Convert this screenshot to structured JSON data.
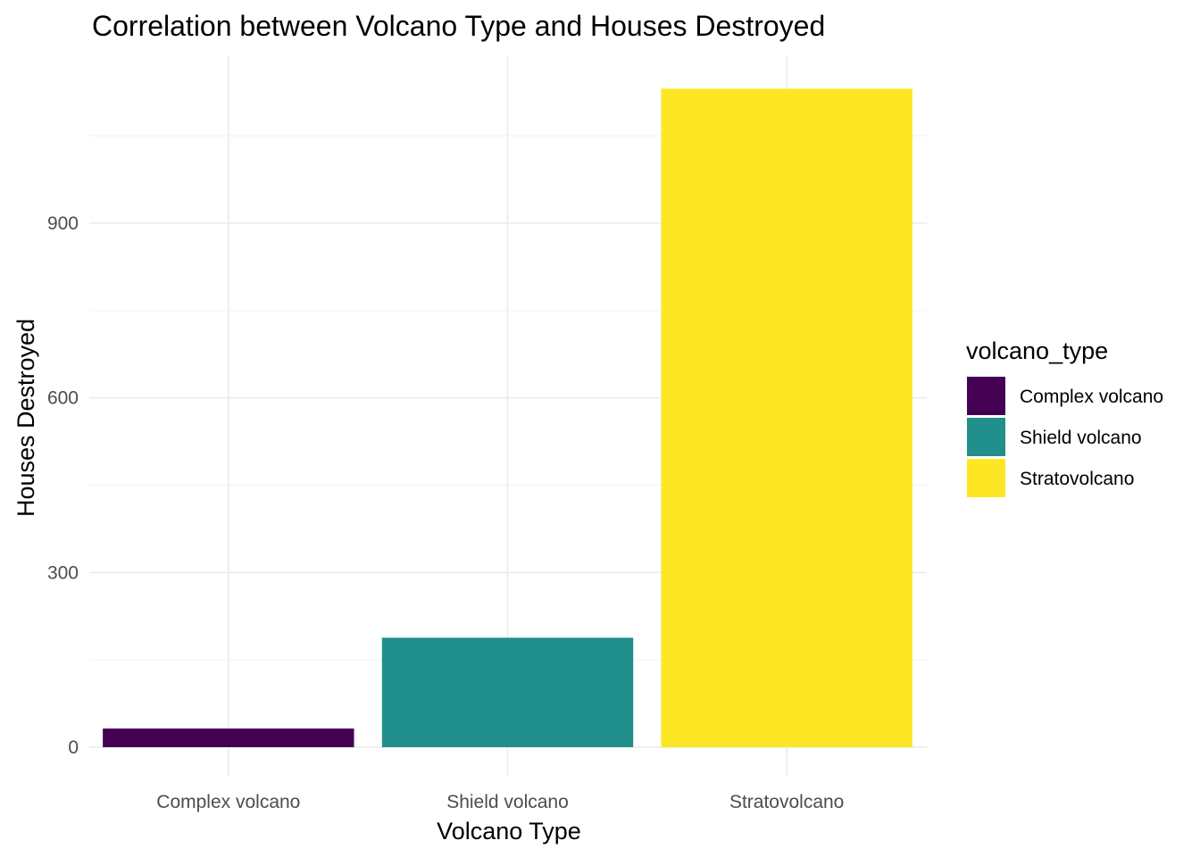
{
  "chart_data": {
    "type": "bar",
    "title": "Correlation between Volcano Type and Houses Destroyed",
    "xlabel": "Volcano Type",
    "ylabel": "Houses Destroyed",
    "categories": [
      "Complex volcano",
      "Shield volcano",
      "Stratovolcano"
    ],
    "values": [
      32,
      188,
      1131
    ],
    "colors": [
      "#440154",
      "#21908C",
      "#FDE725"
    ],
    "ylim": [
      0,
      1200
    ],
    "yticks": [
      0,
      300,
      600,
      900
    ],
    "ytick_labels": [
      "0",
      "300",
      "600",
      "900"
    ],
    "grid": true,
    "legend": {
      "title": "volcano_type",
      "position": "right",
      "entries": [
        "Complex volcano",
        "Shield volcano",
        "Stratovolcano"
      ]
    }
  }
}
